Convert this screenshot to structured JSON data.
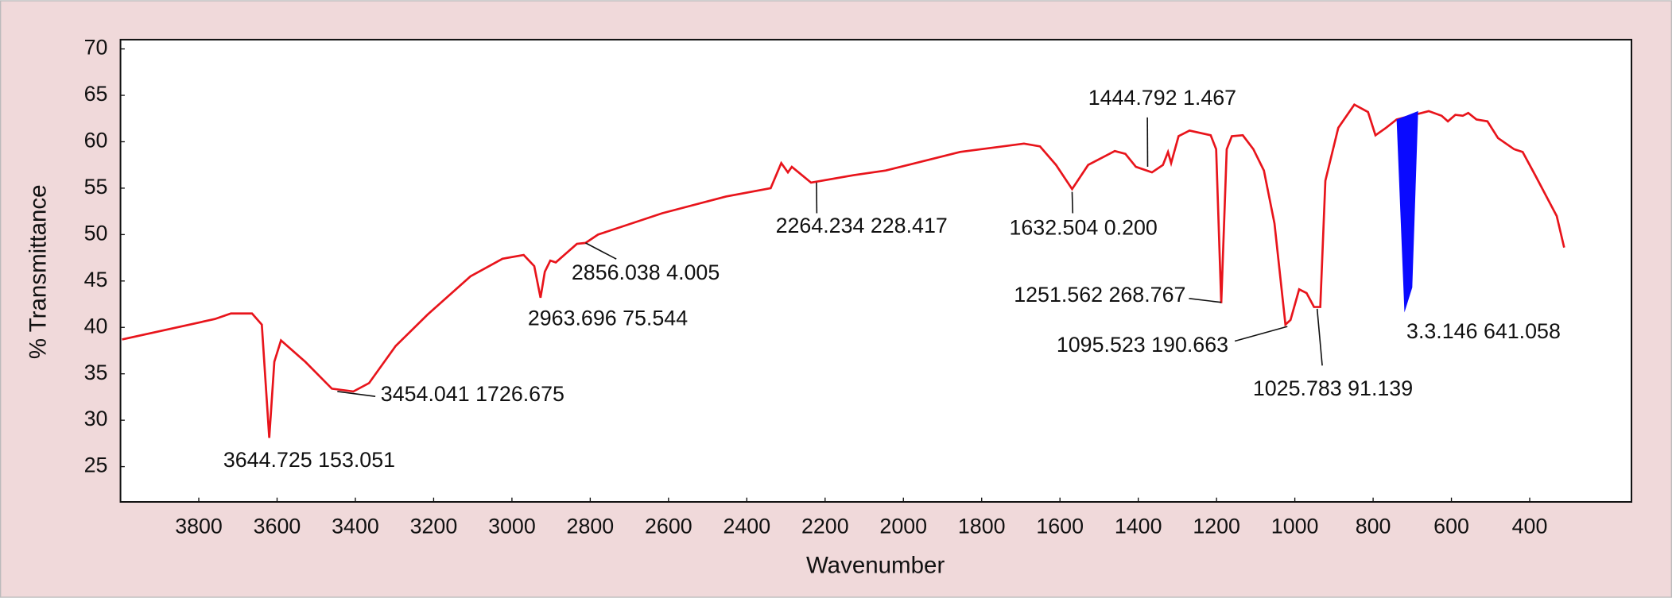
{
  "chart_data": {
    "type": "line",
    "xlabel": "Wavenumber",
    "ylabel": "% Transmittance",
    "xlim": [
      4000,
      140
    ],
    "ylim": [
      21.2,
      71
    ],
    "xticks": [
      3800,
      3600,
      3400,
      3200,
      3000,
      2800,
      2600,
      2400,
      2200,
      2000,
      1800,
      1600,
      1400,
      1200,
      1000,
      800,
      600,
      400
    ],
    "yticks": [
      25,
      30,
      35,
      40,
      45,
      50,
      55,
      60,
      65,
      70
    ],
    "reverse_x": true,
    "series": [
      {
        "color": "#e8141b",
        "x": [
          3996,
          3759,
          3718,
          3664,
          3639,
          3620,
          3607,
          3590,
          3528,
          3460,
          3405,
          3365,
          3297,
          3215,
          3106,
          3024,
          2970,
          2943,
          2927,
          2916,
          2902,
          2888,
          2861,
          2834,
          2812,
          2780,
          2616,
          2453,
          2339,
          2312,
          2295,
          2285,
          2236,
          2127,
          2045,
          1855,
          1692,
          1651,
          1610,
          1569,
          1528,
          1460,
          1433,
          1406,
          1365,
          1337,
          1324,
          1316,
          1297,
          1269,
          1215,
          1201,
          1188,
          1174,
          1161,
          1133,
          1106,
          1079,
          1052,
          1024,
          1011,
          989,
          970,
          951,
          935,
          922,
          889,
          848,
          813,
          794,
          767,
          740,
          658,
          625,
          609,
          590,
          571,
          557,
          536,
          508,
          481,
          440,
          418,
          386,
          331,
          312
        ],
        "values": [
          38.7,
          40.9,
          41.5,
          41.5,
          40.3,
          28.1,
          36.3,
          38.6,
          36.3,
          33.4,
          33.1,
          34.0,
          38.0,
          41.4,
          45.5,
          47.4,
          47.8,
          46.6,
          43.2,
          46.0,
          47.2,
          47.0,
          48.0,
          49.0,
          49.1,
          50.0,
          52.3,
          54.1,
          55.0,
          57.7,
          56.7,
          57.3,
          55.6,
          56.4,
          56.9,
          58.9,
          59.8,
          59.5,
          57.5,
          54.9,
          57.5,
          59.0,
          58.7,
          57.3,
          56.7,
          57.5,
          58.9,
          57.7,
          60.6,
          61.2,
          60.7,
          59.2,
          42.6,
          59.2,
          60.6,
          60.7,
          59.2,
          56.9,
          51.2,
          40.3,
          40.8,
          44.1,
          43.7,
          42.2,
          42.2,
          55.8,
          61.5,
          64.0,
          63.2,
          60.7,
          61.5,
          62.4,
          63.3,
          62.8,
          62.2,
          62.9,
          62.8,
          63.1,
          62.4,
          62.2,
          60.4,
          59.2,
          58.9,
          56.4,
          52.0,
          48.6
        ]
      }
    ],
    "highlight": {
      "color": "#0a0aff",
      "x": [
        740,
        685,
        700,
        720
      ],
      "y": [
        62.4,
        63.3,
        44.3,
        41.6
      ]
    },
    "annotations": [
      {
        "text": "3644.725 153.051"
      },
      {
        "text": "3454.041 1726.675",
        "x": 3446,
        "y": 33.1
      },
      {
        "text": "2963.696 75.544"
      },
      {
        "text": "2856.038 4.005",
        "x": 2812,
        "y": 49.1
      },
      {
        "text": "2264.234 228.417",
        "x": 2222,
        "y": 55.6
      },
      {
        "text": "1632.504 0.200",
        "x": 1569,
        "y": 54.6
      },
      {
        "text": "1444.792 1.467",
        "x": 1376,
        "y": 57.3
      },
      {
        "text": "1251.562 268.767",
        "x": 1188,
        "y": 42.7
      },
      {
        "text": "1095.523 190.663",
        "x": 1019,
        "y": 40.1
      },
      {
        "text": "1025.783 91.139",
        "x": 943,
        "y": 42.0
      },
      {
        "text": "3.3.146 641.058"
      }
    ]
  }
}
